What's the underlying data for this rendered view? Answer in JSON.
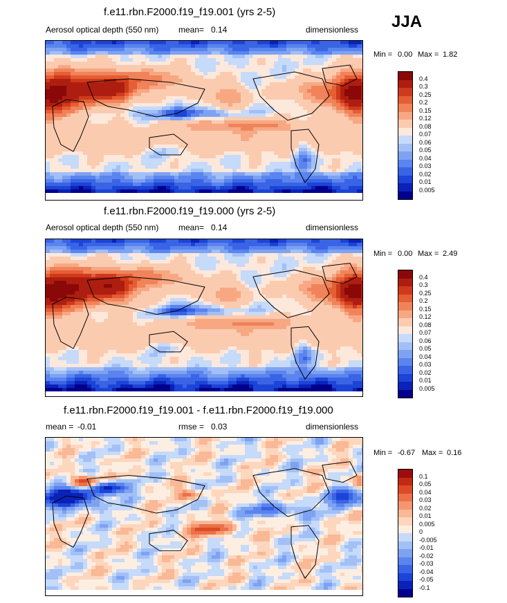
{
  "season": "JJA",
  "palettes": {
    "aod": [
      "#00008c",
      "#0a22b8",
      "#1c44d6",
      "#3a64e6",
      "#5a84ee",
      "#7ea2f2",
      "#a2c0f6",
      "#c6dafa",
      "#fde8dc",
      "#fbcbb0",
      "#f7a883",
      "#f0835a",
      "#e55e34",
      "#cf3a1c",
      "#ae1e10",
      "#8a0808"
    ],
    "diff": [
      "#00008c",
      "#0a22b8",
      "#1c44d6",
      "#3a64e6",
      "#5a84ee",
      "#7ea2f2",
      "#a2c0f6",
      "#c6dafa",
      "#fdeee2",
      "#fcd6bd",
      "#f9b896",
      "#f5966e",
      "#ec7048",
      "#dd4a26",
      "#c22a12",
      "#9c0c0c"
    ]
  },
  "panels": [
    {
      "id": "top",
      "title": "f.e11.rbn.F2000.f19_f19.001 (yrs 2-5)",
      "variable": "Aerosol optical depth (550 nm)",
      "stat_label": "mean=",
      "stat_value": "0.14",
      "units": "dimensionless",
      "min_label": "Min =",
      "min_value": "0.00",
      "max_label": "Max =",
      "max_value": "1.82",
      "levels": [
        "0.4",
        "0.3",
        "0.25",
        "0.2",
        "0.15",
        "0.12",
        "0.08",
        "0.07",
        "0.06",
        "0.05",
        "0.04",
        "0.03",
        "0.02",
        "0.01",
        "0.005"
      ]
    },
    {
      "id": "middle",
      "title": "f.e11.rbn.F2000.f19_f19.000 (yrs 2-5)",
      "variable": "Aerosol optical depth (550 nm)",
      "stat_label": "mean=",
      "stat_value": "0.14",
      "units": "dimensionless",
      "min_label": "Min =",
      "min_value": "0.00",
      "max_label": "Max =",
      "max_value": "2.49",
      "levels": [
        "0.4",
        "0.3",
        "0.25",
        "0.2",
        "0.15",
        "0.12",
        "0.08",
        "0.07",
        "0.06",
        "0.05",
        "0.04",
        "0.03",
        "0.02",
        "0.01",
        "0.005"
      ]
    },
    {
      "id": "bottom",
      "title": "f.e11.rbn.F2000.f19_f19.001 - f.e11.rbn.F2000.f19_f19.000",
      "stat_label": "mean =",
      "stat_value": "-0.01",
      "rmse_label": "rmse =",
      "rmse_value": "0.03",
      "units": "dimensionless",
      "min_label": "Min =",
      "min_value": "-0.67",
      "max_label": "Max =",
      "max_value": "0.16",
      "levels": [
        "0.1",
        "0.05",
        "0.04",
        "0.03",
        "0.02",
        "0.01",
        "0.005",
        "0",
        "-0.005",
        "-0.01",
        "-0.02",
        "-0.03",
        "-0.04",
        "-0.05",
        "-0.1"
      ]
    }
  ],
  "chart_data": [
    {
      "type": "heatmap",
      "title": "f.e11.rbn.F2000.f19_f19.001 (yrs 2-5)",
      "variable": "Aerosol optical depth (550 nm)",
      "season": "JJA",
      "mean": 0.14,
      "min": 0.0,
      "max": 1.82,
      "units": "dimensionless",
      "contour_levels": [
        0.005,
        0.01,
        0.02,
        0.03,
        0.04,
        0.05,
        0.06,
        0.07,
        0.08,
        0.12,
        0.15,
        0.2,
        0.25,
        0.3,
        0.4
      ]
    },
    {
      "type": "heatmap",
      "title": "f.e11.rbn.F2000.f19_f19.000 (yrs 2-5)",
      "variable": "Aerosol optical depth (550 nm)",
      "season": "JJA",
      "mean": 0.14,
      "min": 0.0,
      "max": 2.49,
      "units": "dimensionless",
      "contour_levels": [
        0.005,
        0.01,
        0.02,
        0.03,
        0.04,
        0.05,
        0.06,
        0.07,
        0.08,
        0.12,
        0.15,
        0.2,
        0.25,
        0.3,
        0.4
      ]
    },
    {
      "type": "heatmap",
      "title": "f.e11.rbn.F2000.f19_f19.001 - f.e11.rbn.F2000.f19_f19.000",
      "season": "JJA",
      "mean": -0.01,
      "rmse": 0.03,
      "min": -0.67,
      "max": 0.16,
      "units": "dimensionless",
      "contour_levels": [
        -0.1,
        -0.05,
        -0.04,
        -0.03,
        -0.02,
        -0.01,
        -0.005,
        0,
        0.005,
        0.01,
        0.02,
        0.03,
        0.04,
        0.05,
        0.1
      ]
    }
  ]
}
